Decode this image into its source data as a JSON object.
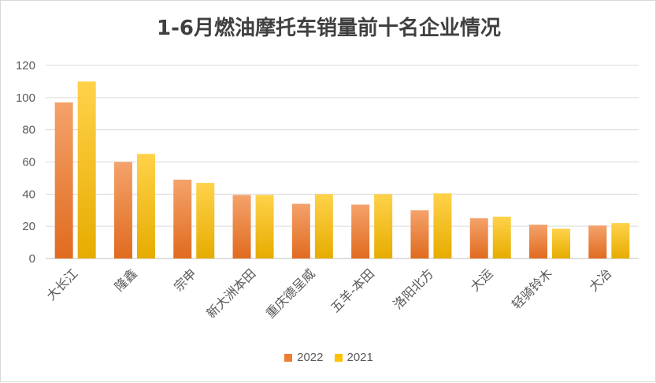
{
  "chart_data": {
    "type": "bar",
    "title": "1-6月燃油摩托车销量前十名企业情况",
    "categories": [
      "大长江",
      "隆鑫",
      "宗申",
      "新大洲本田",
      "重庆德呈威",
      "五羊-本田",
      "洛阳北方",
      "大运",
      "轻骑铃木",
      "大冶"
    ],
    "series": [
      {
        "name": "2022",
        "color": "#ED7D31",
        "values": [
          97,
          60,
          49,
          39.5,
          34,
          33.5,
          30,
          25,
          21,
          20.5
        ]
      },
      {
        "name": "2021",
        "color": "#FFC000",
        "values": [
          110,
          65,
          47,
          39.5,
          40,
          40,
          40.5,
          26,
          18.5,
          22
        ]
      }
    ],
    "ylim": [
      0,
      120
    ],
    "yticks": [
      0,
      20,
      40,
      60,
      80,
      100,
      120
    ],
    "grid": true,
    "legend_position": "bottom"
  }
}
